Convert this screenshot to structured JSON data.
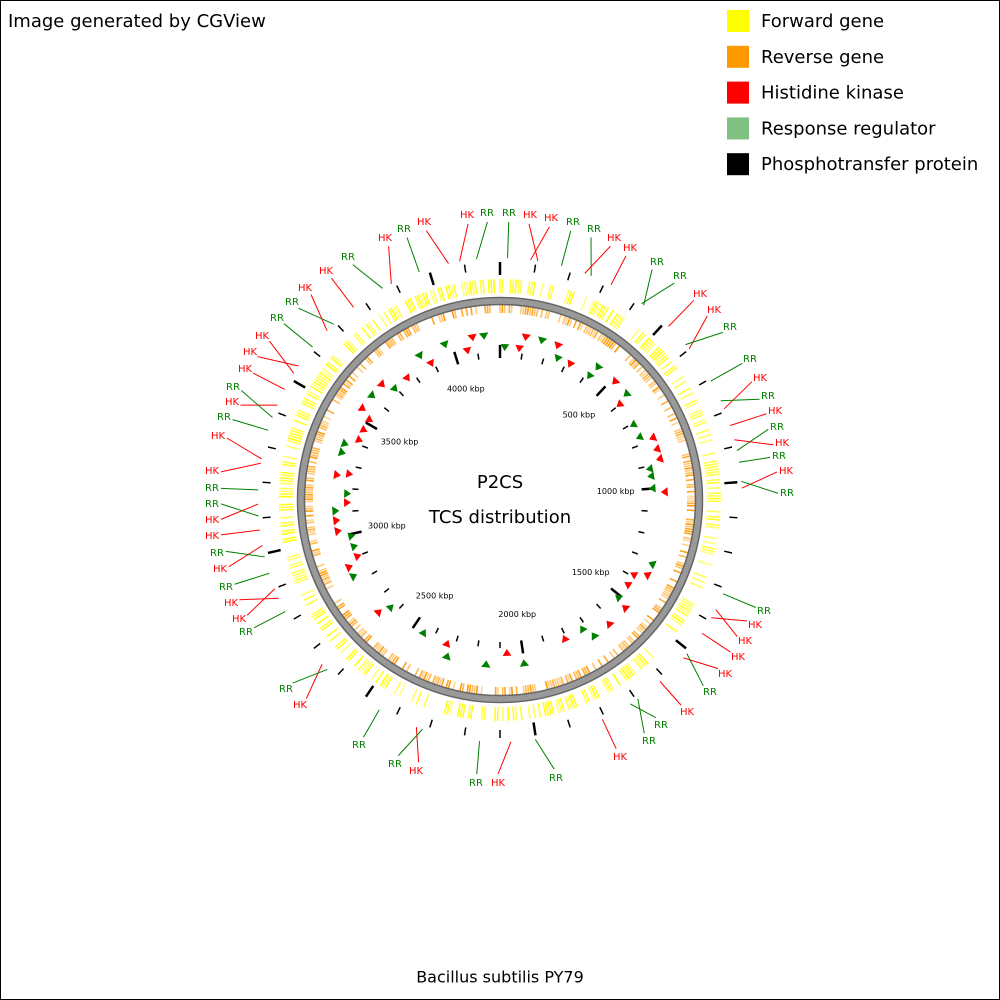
{
  "header": "Image generated by CGView",
  "legend": [
    {
      "label": "Forward gene",
      "color": "#ffff00"
    },
    {
      "label": "Reverse gene",
      "color": "#ff9900"
    },
    {
      "label": "Histidine kinase",
      "color": "#ff0000"
    },
    {
      "label": "Response regulator",
      "color": "#80c080"
    },
    {
      "label": "Phosphotransfer protein",
      "color": "#000000"
    }
  ],
  "title": [
    "P2CS",
    "TCS distribution"
  ],
  "ticks": [
    "500 kbp",
    "1000 kbp",
    "1500 kbp",
    "2000 kbp",
    "2500 kbp",
    "3000 kbp",
    "3500 kbp",
    "4000 kbp"
  ],
  "features": [
    {
      "label": "RR",
      "color": "#008000"
    },
    {
      "label": "RR",
      "color": "#008000"
    },
    {
      "label": "HK",
      "color": "#ff0000"
    },
    {
      "label": "HK",
      "color": "#ff0000"
    },
    {
      "label": "RR",
      "color": "#008000"
    },
    {
      "label": "RR",
      "color": "#008000"
    },
    {
      "label": "HK",
      "color": "#ff0000"
    },
    {
      "label": "HK",
      "color": "#ff0000"
    },
    {
      "label": "RR",
      "color": "#008000"
    },
    {
      "label": "RR",
      "color": "#008000"
    },
    {
      "label": "HK",
      "color": "#ff0000"
    },
    {
      "label": "HK",
      "color": "#ff0000"
    },
    {
      "label": "RR",
      "color": "#008000"
    },
    {
      "label": "RR",
      "color": "#008000"
    },
    {
      "label": "HK",
      "color": "#ff0000"
    },
    {
      "label": "RR",
      "color": "#008000"
    },
    {
      "label": "HK",
      "color": "#ff0000"
    },
    {
      "label": "RR",
      "color": "#008000"
    },
    {
      "label": "HK",
      "color": "#ff0000"
    },
    {
      "label": "RR",
      "color": "#008000"
    },
    {
      "label": "HK",
      "color": "#ff0000"
    },
    {
      "label": "RR",
      "color": "#008000"
    },
    {
      "label": "RR",
      "color": "#008000"
    },
    {
      "label": "HK",
      "color": "#ff0000"
    },
    {
      "label": "HK",
      "color": "#ff0000"
    },
    {
      "label": "HK",
      "color": "#ff0000"
    },
    {
      "label": "HK",
      "color": "#ff0000"
    },
    {
      "label": "RR",
      "color": "#008000"
    },
    {
      "label": "HK",
      "color": "#ff0000"
    },
    {
      "label": "RR",
      "color": "#008000"
    },
    {
      "label": "RR",
      "color": "#008000"
    },
    {
      "label": "HK",
      "color": "#ff0000"
    },
    {
      "label": "RR",
      "color": "#008000"
    },
    {
      "label": "HK",
      "color": "#ff0000"
    },
    {
      "label": "RR",
      "color": "#008000"
    },
    {
      "label": "HK",
      "color": "#ff0000"
    },
    {
      "label": "RR",
      "color": "#008000"
    },
    {
      "label": "RR",
      "color": "#008000"
    },
    {
      "label": "HK",
      "color": "#ff0000"
    },
    {
      "label": "RR",
      "color": "#008000"
    },
    {
      "label": "RR",
      "color": "#008000"
    },
    {
      "label": "HK",
      "color": "#ff0000"
    },
    {
      "label": "HK",
      "color": "#ff0000"
    },
    {
      "label": "RR",
      "color": "#008000"
    },
    {
      "label": "HK",
      "color": "#ff0000"
    },
    {
      "label": "RR",
      "color": "#008000"
    },
    {
      "label": "HK",
      "color": "#ff0000"
    },
    {
      "label": "HK",
      "color": "#ff0000"
    },
    {
      "label": "RR",
      "color": "#008000"
    },
    {
      "label": "RR",
      "color": "#008000"
    },
    {
      "label": "HK",
      "color": "#ff0000"
    },
    {
      "label": "HK",
      "color": "#ff0000"
    },
    {
      "label": "RR",
      "color": "#008000"
    },
    {
      "label": "HK",
      "color": "#ff0000"
    },
    {
      "label": "RR",
      "color": "#008000"
    },
    {
      "label": "HK",
      "color": "#ff0000"
    },
    {
      "label": "HK",
      "color": "#ff0000"
    },
    {
      "label": "HK",
      "color": "#ff0000"
    },
    {
      "label": "RR",
      "color": "#008000"
    },
    {
      "label": "RR",
      "color": "#008000"
    },
    {
      "label": "HK",
      "color": "#ff0000"
    },
    {
      "label": "HK",
      "color": "#ff0000"
    },
    {
      "label": "RR",
      "color": "#008000"
    },
    {
      "label": "HK",
      "color": "#ff0000"
    },
    {
      "label": "RR",
      "color": "#008000"
    },
    {
      "label": "HK",
      "color": "#ff0000"
    },
    {
      "label": "HK",
      "color": "#ff0000"
    }
  ],
  "footer": "Bacillus subtilis PY79"
}
